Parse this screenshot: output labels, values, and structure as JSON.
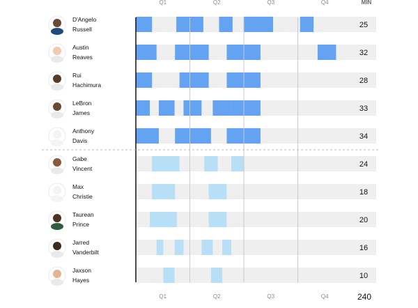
{
  "chart_data": {
    "type": "bar",
    "quarters": [
      "Q1",
      "Q2",
      "Q3",
      "Q4"
    ],
    "minutes_header": "MIN",
    "total_minutes": "240",
    "x_range": [
      0,
      48
    ],
    "colors": {
      "starter": "#63a3f2",
      "bench": "#b9dff7",
      "track": "#efefef",
      "quarter_line": "#c9c9c9",
      "axis": "#000000",
      "divider": "#bdbdbd"
    },
    "players": [
      {
        "first": "D'Angelo",
        "last": "Russell",
        "role": "starter",
        "minutes": "25",
        "stints": [
          [
            0,
            3.6
          ],
          [
            9,
            15.0
          ],
          [
            18.5,
            21.5
          ],
          [
            24,
            30.5
          ],
          [
            36.5,
            39.5
          ]
        ],
        "avatar": {
          "skin": "#6b4a33",
          "shirt": "#1f4a7a"
        }
      },
      {
        "first": "Austin",
        "last": "Reaves",
        "role": "starter",
        "minutes": "32",
        "stints": [
          [
            0,
            4.6
          ],
          [
            8.7,
            16.2
          ],
          [
            20.2,
            24
          ],
          [
            24,
            27.7
          ],
          [
            40.4,
            44.5
          ]
        ],
        "avatar": {
          "skin": "#f2c9b1",
          "shirt": "#e9e9e9"
        }
      },
      {
        "first": "Rui",
        "last": "Hachimura",
        "role": "starter",
        "minutes": "28",
        "stints": [
          [
            0,
            3.6
          ],
          [
            9.7,
            16.2
          ],
          [
            20.2,
            24
          ],
          [
            24,
            27.7
          ]
        ],
        "avatar": {
          "skin": "#5a3a28",
          "shirt": "#e9e9e9"
        }
      },
      {
        "first": "LeBron",
        "last": "James",
        "role": "starter",
        "minutes": "33",
        "stints": [
          [
            0,
            3.1
          ],
          [
            5.1,
            8.6
          ],
          [
            10.6,
            14.6
          ],
          [
            17.1,
            21.2
          ],
          [
            21.2,
            24
          ],
          [
            24,
            27.7
          ]
        ],
        "avatar": {
          "skin": "#6b4a33",
          "shirt": "#e9e9e9"
        }
      },
      {
        "first": "Anthony",
        "last": "Davis",
        "role": "starter",
        "minutes": "34",
        "stints": [
          [
            0,
            5.1
          ],
          [
            8.7,
            16.7
          ],
          [
            20.2,
            24
          ],
          [
            24,
            27.7
          ]
        ],
        "avatar": {
          "skin": "#f4f4f4",
          "shirt": "#f4f4f4"
        }
      },
      {
        "first": "Gabe",
        "last": "Vincent",
        "role": "bench",
        "minutes": "24",
        "stints": [
          [
            3.6,
            9.7
          ],
          [
            15.2,
            18.2
          ],
          [
            21.2,
            24
          ],
          [
            24,
            24
          ]
        ],
        "avatar": {
          "skin": "#8a5a3c",
          "shirt": "#e9e9e9"
        }
      },
      {
        "first": "Max",
        "last": "Christie",
        "role": "bench",
        "minutes": "18",
        "stints": [
          [
            3.6,
            8.7
          ],
          [
            16.2,
            20.2
          ]
        ],
        "avatar": {
          "skin": "#f4f4f4",
          "shirt": "#f4f4f4"
        }
      },
      {
        "first": "Taurean",
        "last": "Prince",
        "role": "bench",
        "minutes": "20",
        "stints": [
          [
            3.1,
            9.1
          ],
          [
            16.2,
            20.2
          ]
        ],
        "avatar": {
          "skin": "#4e3323",
          "shirt": "#2f5d3f"
        }
      },
      {
        "first": "Jarred",
        "last": "Vanderbilt",
        "role": "bench",
        "minutes": "16",
        "stints": [
          [
            4.6,
            6.1
          ],
          [
            8.6,
            10.6
          ],
          [
            14.6,
            17.1
          ],
          [
            19.2,
            21.2
          ]
        ],
        "avatar": {
          "skin": "#3d2a1f",
          "shirt": "#e9e9e9"
        }
      },
      {
        "first": "Jaxson",
        "last": "Hayes",
        "role": "bench",
        "minutes": "10",
        "stints": [
          [
            6.1,
            8.6
          ],
          [
            16.7,
            19.2
          ]
        ],
        "avatar": {
          "skin": "#e2b48f",
          "shirt": "#e9e9e9"
        }
      }
    ]
  }
}
